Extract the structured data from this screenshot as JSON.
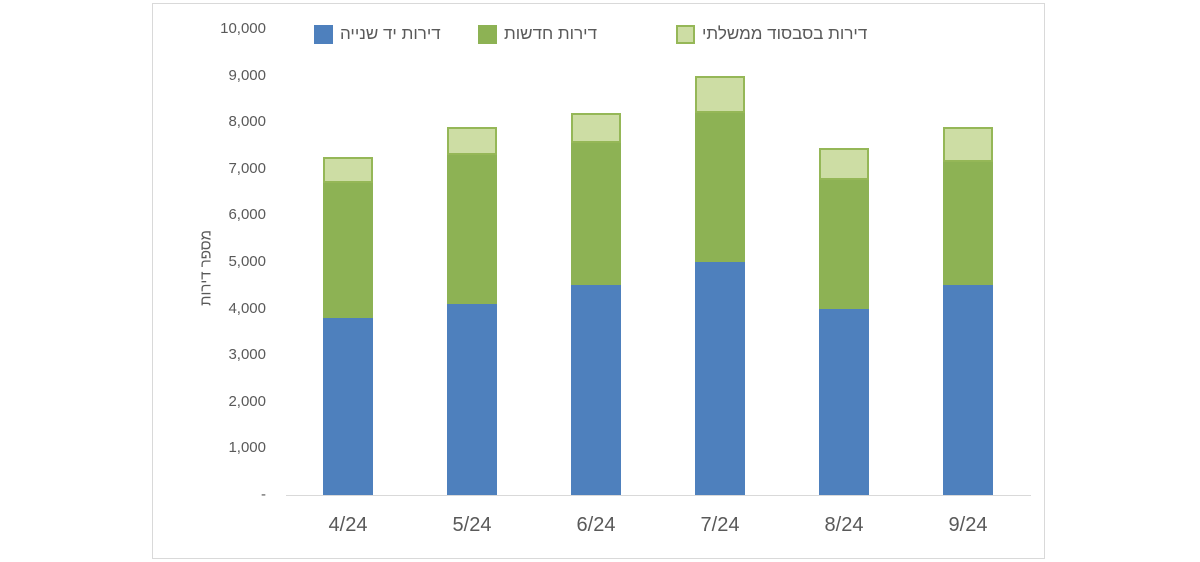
{
  "legend": {
    "items": [
      {
        "label": "דירות יד שנייה",
        "color": "#4E80BD",
        "border": "#4E80BD"
      },
      {
        "label": "דירות חדשות",
        "color": "#8DB254",
        "border": "#8DB254"
      },
      {
        "label": "דירות בסבסוד ממשלתי",
        "color": "#CDDDA4",
        "border": "#95B757"
      }
    ]
  },
  "axes": {
    "y_title": "מספר דירות",
    "y_tick_labels": [
      "10,000",
      "9,000",
      "8,000",
      "7,000",
      "6,000",
      "5,000",
      "4,000",
      "3,000",
      "2,000",
      "1,000",
      "-"
    ],
    "y_tick_values": [
      10000,
      9000,
      8000,
      7000,
      6000,
      5000,
      4000,
      3000,
      2000,
      1000,
      0
    ],
    "x_tick_labels": [
      "4/24",
      "5/24",
      "6/24",
      "7/24",
      "8/24",
      "9/24"
    ]
  },
  "chart_data": {
    "type": "bar",
    "stacked": true,
    "categories": [
      "4/24",
      "5/24",
      "6/24",
      "7/24",
      "8/24",
      "9/24"
    ],
    "series": [
      {
        "name": "דירות יד שנייה",
        "color": "#4E80BD",
        "values": [
          3800,
          4100,
          4500,
          5000,
          4000,
          4500
        ]
      },
      {
        "name": "דירות חדשות",
        "color": "#8DB254",
        "values": [
          2900,
          3200,
          3050,
          3200,
          2750,
          2650
        ]
      },
      {
        "name": "דירות בסבסוד ממשלתי",
        "color": "#CDDDA4",
        "border_color": "#95B757",
        "values": [
          550,
          600,
          650,
          800,
          700,
          750
        ]
      }
    ],
    "totals": [
      7250,
      7900,
      8200,
      9000,
      7450,
      7900
    ],
    "title": "",
    "xlabel": "",
    "ylabel": "מספר דירות",
    "ylim": [
      0,
      10000
    ],
    "grid": false,
    "legend_position": "top"
  }
}
